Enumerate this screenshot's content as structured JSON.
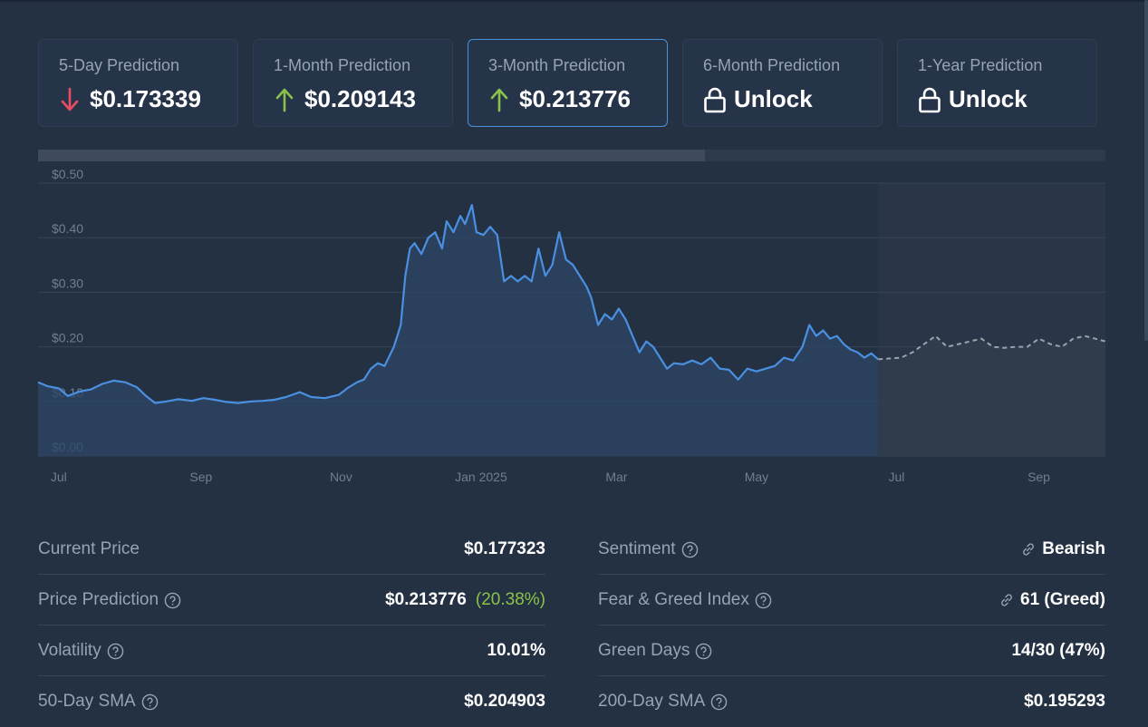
{
  "colors": {
    "background": "#243143",
    "card_bg": "#26344a",
    "card_active_border": "#4a90d9",
    "line": "#4a90e2",
    "forecast_line": "#9aa3ad",
    "up": "#8bc34a",
    "down": "#ea4d5f",
    "muted": "#95a3b5"
  },
  "cards": [
    {
      "label": "5-Day Prediction",
      "value": "$0.173339",
      "icon": "arrow-down-icon",
      "active": false
    },
    {
      "label": "1-Month Prediction",
      "value": "$0.209143",
      "icon": "arrow-up-icon",
      "active": false
    },
    {
      "label": "3-Month Prediction",
      "value": "$0.213776",
      "icon": "arrow-up-icon",
      "active": true
    },
    {
      "label": "6-Month Prediction",
      "value": "Unlock",
      "icon": "lock-icon",
      "active": false
    },
    {
      "label": "1-Year Prediction",
      "value": "Unlock",
      "icon": "lock-icon",
      "active": false
    }
  ],
  "progress": {
    "fraction": 0.625
  },
  "chart_data": {
    "type": "line",
    "ylim": [
      0,
      0.5
    ],
    "y_ticks": [
      "$0.50",
      "$0.40",
      "$0.30",
      "$0.20",
      "$0.10",
      "$0.00"
    ],
    "x_ticks": [
      "Jul",
      "Sep",
      "Nov",
      "Jan 2025",
      "Mar",
      "May",
      "Jul",
      "Sep"
    ],
    "x_range": [
      "2024-06-22",
      "2025-09-30"
    ],
    "grid": true,
    "forecast_start": "2025-06-23",
    "series": [
      {
        "values": [
          [
            "2024-06-22",
            0.135
          ],
          [
            "2024-06-26",
            0.128
          ],
          [
            "2024-07-01",
            0.124
          ],
          [
            "2024-07-05",
            0.11
          ],
          [
            "2024-07-10",
            0.118
          ],
          [
            "2024-07-15",
            0.122
          ],
          [
            "2024-07-20",
            0.132
          ],
          [
            "2024-07-25",
            0.138
          ],
          [
            "2024-07-30",
            0.135
          ],
          [
            "2024-08-04",
            0.126
          ],
          [
            "2024-08-08",
            0.11
          ],
          [
            "2024-08-12",
            0.097
          ],
          [
            "2024-08-17",
            0.1
          ],
          [
            "2024-08-22",
            0.104
          ],
          [
            "2024-08-28",
            0.101
          ],
          [
            "2024-09-02",
            0.106
          ],
          [
            "2024-09-07",
            0.103
          ],
          [
            "2024-09-12",
            0.099
          ],
          [
            "2024-09-17",
            0.097
          ],
          [
            "2024-09-23",
            0.1
          ],
          [
            "2024-09-28",
            0.101
          ],
          [
            "2024-10-03",
            0.103
          ],
          [
            "2024-10-08",
            0.108
          ],
          [
            "2024-10-14",
            0.117
          ],
          [
            "2024-10-19",
            0.108
          ],
          [
            "2024-10-25",
            0.106
          ],
          [
            "2024-10-31",
            0.112
          ],
          [
            "2024-11-04",
            0.125
          ],
          [
            "2024-11-08",
            0.135
          ],
          [
            "2024-11-11",
            0.14
          ],
          [
            "2024-11-14",
            0.16
          ],
          [
            "2024-11-17",
            0.17
          ],
          [
            "2024-11-20",
            0.165
          ],
          [
            "2024-11-24",
            0.2
          ],
          [
            "2024-11-27",
            0.24
          ],
          [
            "2024-11-29",
            0.33
          ],
          [
            "2024-12-01",
            0.38
          ],
          [
            "2024-12-03",
            0.39
          ],
          [
            "2024-12-06",
            0.37
          ],
          [
            "2024-12-09",
            0.4
          ],
          [
            "2024-12-12",
            0.41
          ],
          [
            "2024-12-15",
            0.38
          ],
          [
            "2024-12-17",
            0.43
          ],
          [
            "2024-12-20",
            0.41
          ],
          [
            "2024-12-23",
            0.44
          ],
          [
            "2024-12-25",
            0.425
          ],
          [
            "2024-12-28",
            0.46
          ],
          [
            "2024-12-30",
            0.41
          ],
          [
            "2025-01-02",
            0.405
          ],
          [
            "2025-01-05",
            0.42
          ],
          [
            "2025-01-08",
            0.405
          ],
          [
            "2025-01-11",
            0.32
          ],
          [
            "2025-01-14",
            0.33
          ],
          [
            "2025-01-17",
            0.32
          ],
          [
            "2025-01-20",
            0.33
          ],
          [
            "2025-01-23",
            0.32
          ],
          [
            "2025-01-26",
            0.38
          ],
          [
            "2025-01-29",
            0.33
          ],
          [
            "2025-02-01",
            0.35
          ],
          [
            "2025-02-04",
            0.41
          ],
          [
            "2025-02-07",
            0.36
          ],
          [
            "2025-02-10",
            0.35
          ],
          [
            "2025-02-13",
            0.33
          ],
          [
            "2025-02-16",
            0.31
          ],
          [
            "2025-02-18",
            0.29
          ],
          [
            "2025-02-21",
            0.24
          ],
          [
            "2025-02-24",
            0.26
          ],
          [
            "2025-02-27",
            0.25
          ],
          [
            "2025-03-02",
            0.27
          ],
          [
            "2025-03-05",
            0.25
          ],
          [
            "2025-03-08",
            0.22
          ],
          [
            "2025-03-11",
            0.19
          ],
          [
            "2025-03-14",
            0.21
          ],
          [
            "2025-03-17",
            0.2
          ],
          [
            "2025-03-20",
            0.18
          ],
          [
            "2025-03-23",
            0.16
          ],
          [
            "2025-03-26",
            0.17
          ],
          [
            "2025-03-30",
            0.168
          ],
          [
            "2025-04-03",
            0.175
          ],
          [
            "2025-04-07",
            0.168
          ],
          [
            "2025-04-11",
            0.18
          ],
          [
            "2025-04-15",
            0.16
          ],
          [
            "2025-04-19",
            0.158
          ],
          [
            "2025-04-23",
            0.14
          ],
          [
            "2025-04-27",
            0.16
          ],
          [
            "2025-05-01",
            0.155
          ],
          [
            "2025-05-05",
            0.16
          ],
          [
            "2025-05-09",
            0.165
          ],
          [
            "2025-05-13",
            0.18
          ],
          [
            "2025-05-17",
            0.175
          ],
          [
            "2025-05-21",
            0.2
          ],
          [
            "2025-05-24",
            0.24
          ],
          [
            "2025-05-27",
            0.22
          ],
          [
            "2025-05-30",
            0.23
          ],
          [
            "2025-06-02",
            0.215
          ],
          [
            "2025-06-05",
            0.22
          ],
          [
            "2025-06-08",
            0.205
          ],
          [
            "2025-06-11",
            0.195
          ],
          [
            "2025-06-14",
            0.19
          ],
          [
            "2025-06-17",
            0.18
          ],
          [
            "2025-06-20",
            0.188
          ],
          [
            "2025-06-23",
            0.177
          ]
        ]
      },
      {
        "values": [
          [
            "2025-06-23",
            0.177
          ],
          [
            "2025-07-03",
            0.18
          ],
          [
            "2025-07-08",
            0.19
          ],
          [
            "2025-07-13",
            0.205
          ],
          [
            "2025-07-18",
            0.22
          ],
          [
            "2025-07-23",
            0.2
          ],
          [
            "2025-07-28",
            0.205
          ],
          [
            "2025-08-02",
            0.21
          ],
          [
            "2025-08-07",
            0.215
          ],
          [
            "2025-08-12",
            0.2
          ],
          [
            "2025-08-17",
            0.198
          ],
          [
            "2025-08-22",
            0.2
          ],
          [
            "2025-08-27",
            0.2
          ],
          [
            "2025-09-01",
            0.215
          ],
          [
            "2025-09-06",
            0.205
          ],
          [
            "2025-09-11",
            0.2
          ],
          [
            "2025-09-16",
            0.215
          ],
          [
            "2025-09-21",
            0.22
          ],
          [
            "2025-09-30",
            0.21
          ]
        ]
      }
    ]
  },
  "stats": {
    "left": [
      {
        "label": "Current Price",
        "value": "$0.177323",
        "help": false
      },
      {
        "label": "Price Prediction",
        "value": "$0.213776",
        "extra": "(20.38%)",
        "help": true
      },
      {
        "label": "Volatility",
        "value": "10.01%",
        "help": true
      },
      {
        "label": "50-Day SMA",
        "value": "$0.204903",
        "help": true
      }
    ],
    "right": [
      {
        "label": "Sentiment",
        "value": "Bearish",
        "help": true,
        "tone": "red",
        "link": true
      },
      {
        "label": "Fear & Greed Index",
        "value": "61 (Greed)",
        "help": true,
        "tone": "green",
        "link": true
      },
      {
        "label": "Green Days",
        "value": "14/30 (47%)",
        "help": true
      },
      {
        "label": "200-Day SMA",
        "value": "$0.195293",
        "help": true
      }
    ]
  }
}
